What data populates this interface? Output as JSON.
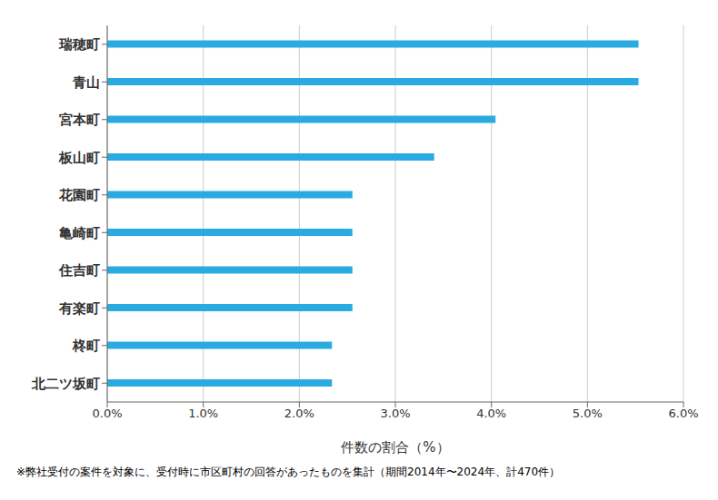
{
  "chart_data": {
    "type": "bar",
    "orientation": "horizontal",
    "categories": [
      "北二ツ坂町",
      "柊町",
      "有楽町",
      "住吉町",
      "亀崎町",
      "花園町",
      "板山町",
      "宮本町",
      "青山",
      "瑞穂町"
    ],
    "values": [
      0.0234,
      0.0234,
      0.02553,
      0.02553,
      0.02553,
      0.02553,
      0.03404,
      0.04043,
      0.05532,
      0.05532
    ],
    "color": "#29ABE2",
    "xlim": [
      0,
      0.06
    ],
    "xticks": [
      {
        "value": 0.0,
        "label": "0.0%"
      },
      {
        "value": 0.01,
        "label": "1.0%"
      },
      {
        "value": 0.02,
        "label": "2.0%"
      },
      {
        "value": 0.03,
        "label": "3.0%"
      },
      {
        "value": 0.04,
        "label": "4.0%"
      },
      {
        "value": 0.05,
        "label": "5.0%"
      },
      {
        "value": 0.06,
        "label": "6.0%"
      }
    ],
    "xlabel": "件数の割合（%）",
    "footnote": "※弊社受付の案件を対象に、受付時に市区町村の回答があったものを集計（期間2014年〜2024年、計470件）",
    "grid": true
  }
}
